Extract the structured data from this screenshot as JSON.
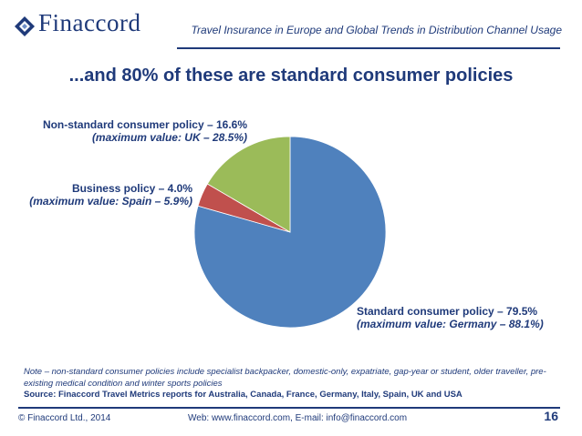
{
  "header": {
    "logo_text": "Finaccord",
    "title": "Travel Insurance in Europe and Global Trends in Distribution Channel Usage"
  },
  "slide": {
    "title": "...and 80% of these are standard consumer policies"
  },
  "chart_data": {
    "type": "pie",
    "start_angle_deg": 0,
    "direction": "clockwise",
    "slices": [
      {
        "label": "Standard consumer policy  – 79.5%",
        "max": "(maximum value: Germany – 88.1%)",
        "value": 79.5,
        "color": "#4f81bd"
      },
      {
        "label": "Business policy – 4.0%",
        "max": "(maximum value: Spain – 5.9%)",
        "value": 4.0,
        "color": "#c0504d"
      },
      {
        "label": "Non-standard consumer policy – 16.6%",
        "max": "(maximum value: UK – 28.5%)",
        "value": 16.6,
        "color": "#9bbb59"
      }
    ]
  },
  "footer": {
    "note": "Note – non-standard consumer policies include specialist backpacker, domestic-only, expatriate, gap-year or student, older traveller, pre-existing medical condition and winter sports policies",
    "source": "Source: Finaccord Travel Metrics reports for Australia, Canada, France, Germany, Italy, Spain, UK and USA",
    "copyright": "© Finaccord Ltd., 2014",
    "web": "Web: www.finaccord.com, E-mail: info@finaccord.com",
    "page_number": "16"
  }
}
